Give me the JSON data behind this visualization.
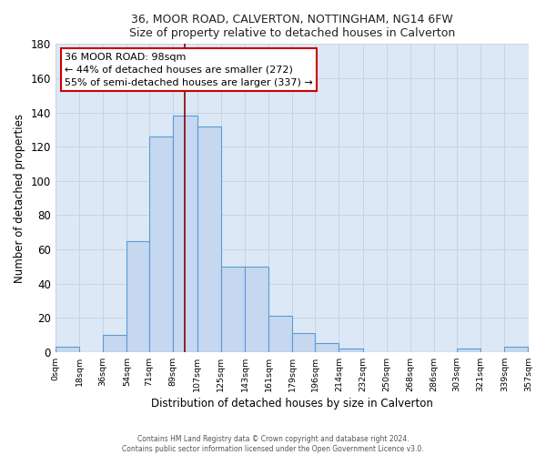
{
  "title_main": "36, MOOR ROAD, CALVERTON, NOTTINGHAM, NG14 6FW",
  "title_sub": "Size of property relative to detached houses in Calverton",
  "xlabel": "Distribution of detached houses by size in Calverton",
  "ylabel": "Number of detached properties",
  "bin_edges": [
    0,
    18,
    36,
    54,
    71,
    89,
    107,
    125,
    143,
    161,
    179,
    196,
    214,
    232,
    250,
    268,
    286,
    303,
    321,
    339,
    357
  ],
  "bar_heights": [
    3,
    0,
    10,
    65,
    126,
    138,
    132,
    50,
    50,
    21,
    11,
    5,
    2,
    0,
    0,
    0,
    0,
    2,
    0,
    3
  ],
  "bar_facecolor": "#c5d8f0",
  "bar_edgecolor": "#5b9bd5",
  "bar_linewidth": 0.8,
  "grid_color": "#c8d4e3",
  "background_color": "#dce8f5",
  "ylim": [
    0,
    180
  ],
  "yticks": [
    0,
    20,
    40,
    60,
    80,
    100,
    120,
    140,
    160,
    180
  ],
  "vline_x": 98,
  "vline_color": "#8b0000",
  "vline_linewidth": 1.2,
  "annotation_title": "36 MOOR ROAD: 98sqm",
  "annotation_line1": "← 44% of detached houses are smaller (272)",
  "annotation_line2": "55% of semi-detached houses are larger (337) →",
  "annotation_box_edgecolor": "#cc0000",
  "annotation_box_facecolor": "#ffffff",
  "tick_labels": [
    "0sqm",
    "18sqm",
    "36sqm",
    "54sqm",
    "71sqm",
    "89sqm",
    "107sqm",
    "125sqm",
    "143sqm",
    "161sqm",
    "179sqm",
    "196sqm",
    "214sqm",
    "232sqm",
    "250sqm",
    "268sqm",
    "286sqm",
    "303sqm",
    "321sqm",
    "339sqm",
    "357sqm"
  ],
  "footer_line1": "Contains HM Land Registry data © Crown copyright and database right 2024.",
  "footer_line2": "Contains public sector information licensed under the Open Government Licence v3.0."
}
